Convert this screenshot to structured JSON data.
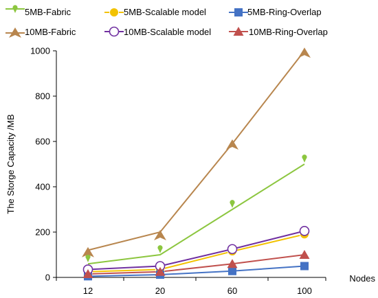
{
  "chart_data": {
    "type": "line",
    "categories": [
      "12",
      "20",
      "60",
      "100"
    ],
    "ylabel": "The Storge Capacity /MB",
    "xlabel": "Nodes",
    "ylim": [
      0,
      1000
    ],
    "yticks": [
      "0",
      "200",
      "400",
      "600",
      "800",
      "1000"
    ],
    "grid": false,
    "legend_position": "top",
    "series": [
      {
        "name": "5MB-Fabric",
        "color": "#8cc63f",
        "marker": "pin",
        "line": [
          60,
          100,
          300,
          500
        ],
        "markers": [
          85,
          125,
          325,
          525
        ]
      },
      {
        "name": "5MB-Scalable model",
        "color": "#f2c200",
        "marker": "circle-filled",
        "line": [
          25,
          35,
          115,
          190
        ],
        "markers": [
          25,
          35,
          115,
          190
        ]
      },
      {
        "name": "5MB-Ring-Overlap",
        "color": "#4472c4",
        "marker": "square",
        "line": [
          5,
          12,
          28,
          50
        ],
        "markers": [
          5,
          12,
          28,
          50
        ]
      },
      {
        "name": "10MB-Fabric",
        "color": "#b8864e",
        "marker": "chevron",
        "line": [
          120,
          200,
          590,
          1000
        ],
        "markers": [
          110,
          185,
          585,
          990
        ]
      },
      {
        "name": "10MB-Scalable model",
        "color": "#7030a0",
        "marker": "circle-open",
        "line": [
          35,
          50,
          125,
          205
        ],
        "markers": [
          35,
          50,
          125,
          205
        ]
      },
      {
        "name": "10MB-Ring-Overlap",
        "color": "#c0504d",
        "marker": "triangle",
        "line": [
          15,
          25,
          60,
          100
        ],
        "markers": [
          15,
          25,
          60,
          100
        ]
      }
    ]
  }
}
